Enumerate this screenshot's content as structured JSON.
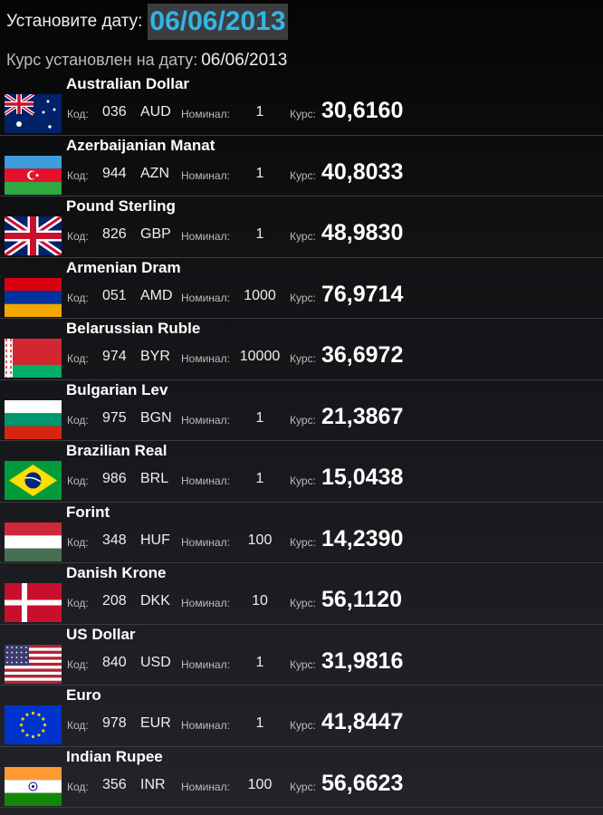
{
  "header": {
    "set_date_label": "Установите дату:",
    "date_value": "06/06/2013",
    "rate_on_label": "Курс установлен на дату:",
    "rate_on_date": "06/06/2013"
  },
  "labels": {
    "code": "Код:",
    "nominal": "Номинал:",
    "rate": "Курс:"
  },
  "currencies": [
    {
      "name": "Australian Dollar",
      "code": "036",
      "iso": "AUD",
      "nominal": "1",
      "rate": "30,6160",
      "flag": "au"
    },
    {
      "name": "Azerbaijanian Manat",
      "code": "944",
      "iso": "AZN",
      "nominal": "1",
      "rate": "40,8033",
      "flag": "az"
    },
    {
      "name": "Pound Sterling",
      "code": "826",
      "iso": "GBP",
      "nominal": "1",
      "rate": "48,9830",
      "flag": "gb"
    },
    {
      "name": "Armenian Dram",
      "code": "051",
      "iso": "AMD",
      "nominal": "1000",
      "rate": "76,9714",
      "flag": "am"
    },
    {
      "name": "Belarussian Ruble",
      "code": "974",
      "iso": "BYR",
      "nominal": "10000",
      "rate": "36,6972",
      "flag": "by"
    },
    {
      "name": "Bulgarian Lev",
      "code": "975",
      "iso": "BGN",
      "nominal": "1",
      "rate": "21,3867",
      "flag": "bg"
    },
    {
      "name": "Brazilian Real",
      "code": "986",
      "iso": "BRL",
      "nominal": "1",
      "rate": "15,0438",
      "flag": "br"
    },
    {
      "name": "Forint",
      "code": "348",
      "iso": "HUF",
      "nominal": "100",
      "rate": "14,2390",
      "flag": "hu"
    },
    {
      "name": "Danish Krone",
      "code": "208",
      "iso": "DKK",
      "nominal": "10",
      "rate": "56,1120",
      "flag": "dk"
    },
    {
      "name": "US Dollar",
      "code": "840",
      "iso": "USD",
      "nominal": "1",
      "rate": "31,9816",
      "flag": "us"
    },
    {
      "name": "Euro",
      "code": "978",
      "iso": "EUR",
      "nominal": "1",
      "rate": "41,8447",
      "flag": "eu"
    },
    {
      "name": "Indian Rupee",
      "code": "356",
      "iso": "INR",
      "nominal": "100",
      "rate": "56,6623",
      "flag": "in"
    }
  ]
}
